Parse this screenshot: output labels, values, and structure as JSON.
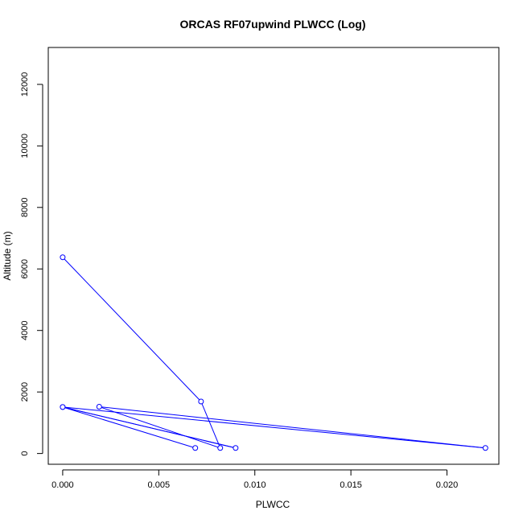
{
  "chart_data": {
    "type": "line",
    "title": "ORCAS RF07upwind PLWCC (Log)",
    "xlabel": "PLWCC",
    "ylabel": "Altitude (m)",
    "xlim": [
      -0.00075,
      0.0227
    ],
    "ylim": [
      -350,
      13200
    ],
    "xticks": [
      0.0,
      0.005,
      0.01,
      0.015,
      0.02
    ],
    "xtick_labels": [
      "0.000",
      "0.005",
      "0.010",
      "0.015",
      "0.020"
    ],
    "yticks": [
      0,
      2000,
      4000,
      6000,
      8000,
      10000,
      12000
    ],
    "ytick_labels": [
      "0",
      "2000",
      "4000",
      "6000",
      "8000",
      "10000",
      "12000"
    ],
    "grid": false,
    "series": [
      {
        "color": "#0000ff",
        "marker": "open-circle",
        "points": [
          {
            "x": 0.0,
            "y": 6380
          },
          {
            "x": 0.0072,
            "y": 1690
          },
          {
            "x": 0.0082,
            "y": 180
          },
          {
            "x": 0.0019,
            "y": 1520
          },
          {
            "x": 0.022,
            "y": 180
          },
          {
            "x": 0.0,
            "y": 1510
          },
          {
            "x": 0.009,
            "y": 180
          },
          {
            "x": 0.0,
            "y": 1510
          },
          {
            "x": 0.0069,
            "y": 180
          }
        ]
      }
    ]
  }
}
